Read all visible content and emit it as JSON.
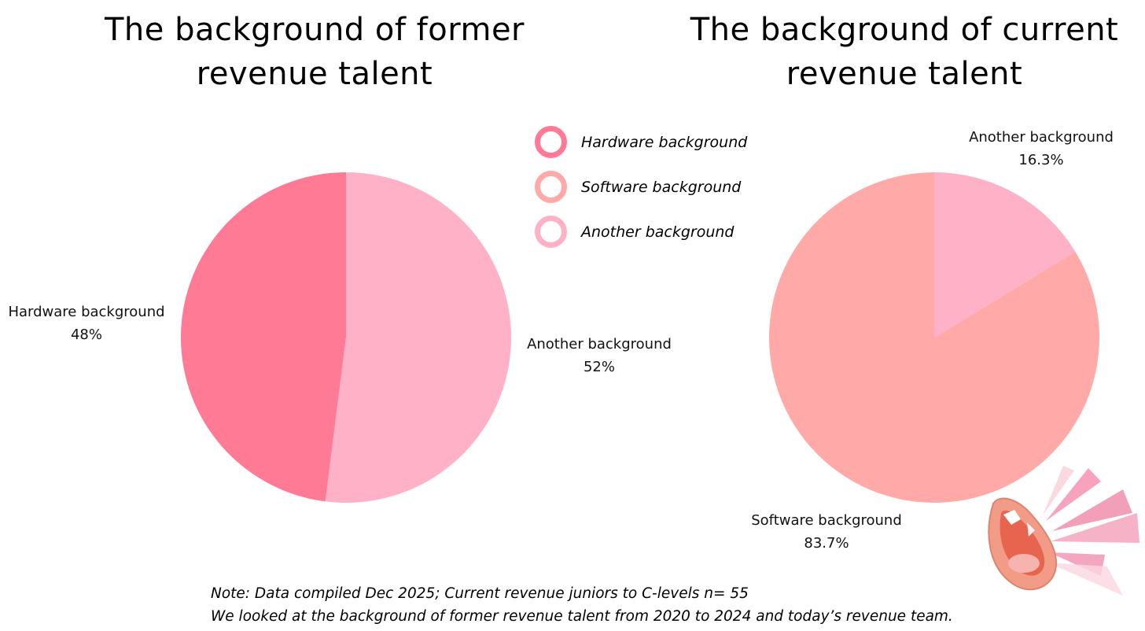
{
  "chart_data": [
    {
      "type": "pie",
      "title": "The background of former revenue talent",
      "slices": [
        {
          "label": "Hardware background",
          "value": 48,
          "value_label": "48%",
          "color": "#FF7A95"
        },
        {
          "label": "Another background",
          "value": 52,
          "value_label": "52%",
          "color": "#FFB1C7"
        }
      ]
    },
    {
      "type": "pie",
      "title": "The background of current revenue talent",
      "slices": [
        {
          "label": "Another background",
          "value": 16.3,
          "value_label": "16.3%",
          "color": "#FFB1C7"
        },
        {
          "label": "Software background",
          "value": 83.7,
          "value_label": "83.7%",
          "color": "#FFAAA9"
        }
      ]
    }
  ],
  "legend": {
    "items": [
      {
        "label": "Hardware background",
        "color": "#FF7A95"
      },
      {
        "label": "Software background",
        "color": "#FFAAA9"
      },
      {
        "label": "Another background",
        "color": "#FFB1C7"
      }
    ]
  },
  "note": {
    "line1": "Note: Data compiled Dec 2025; Current revenue juniors to C-levels n= 55",
    "line2": "We looked at the background of former revenue talent from 2020 to 2024 and today’s revenue team."
  },
  "illustration": {
    "icon": "shouting-mouth-illustration-icon"
  }
}
